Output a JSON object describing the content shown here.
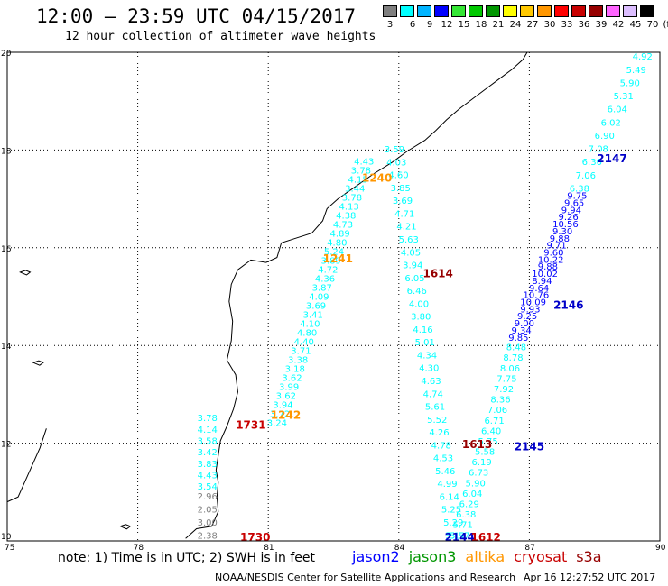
{
  "header": {
    "title": "12:00 — 23:59 UTC 04/15/2017",
    "subtitle": "12 hour collection of altimeter wave heights"
  },
  "scale": {
    "unit": "(ft)",
    "stops": [
      {
        "label": "3",
        "color": "#7f7f7f"
      },
      {
        "label": "6",
        "color": "#00ffff"
      },
      {
        "label": "9",
        "color": "#00b4ff"
      },
      {
        "label": "12",
        "color": "#0000ff"
      },
      {
        "label": "15",
        "color": "#34e634"
      },
      {
        "label": "18",
        "color": "#00c800"
      },
      {
        "label": "21",
        "color": "#009600"
      },
      {
        "label": "24",
        "color": "#ffff00"
      },
      {
        "label": "27",
        "color": "#ffc800"
      },
      {
        "label": "30",
        "color": "#ff9600"
      },
      {
        "label": "33",
        "color": "#ff0000"
      },
      {
        "label": "36",
        "color": "#c80000"
      },
      {
        "label": "39",
        "color": "#960000"
      },
      {
        "label": "42",
        "color": "#ff64ff"
      },
      {
        "label": "45",
        "color": "#dcbeff"
      },
      {
        "label": "70",
        "color": "#000000"
      }
    ]
  },
  "axes": {
    "lon_ticks": [
      "75",
      "78",
      "81",
      "84",
      "87",
      "90"
    ],
    "lat_ticks": [
      "10",
      "12",
      "14",
      "16",
      "18",
      "20"
    ]
  },
  "tracks": [
    {
      "name": "track-jason2-east",
      "color": "#00ffff",
      "start": [
        89.6,
        19.85
      ],
      "end": [
        88.15,
        17.15
      ],
      "values": [
        "4.92",
        "5.49",
        "5.90",
        "5.31",
        "6.04",
        "6.02",
        "6.90",
        "7.08",
        "6.30",
        "7.06",
        "6.38"
      ]
    },
    {
      "name": "track-jason2-east-blue",
      "color": "#0000ff",
      "start": [
        88.1,
        17.0
      ],
      "end": [
        86.75,
        14.1
      ],
      "values": [
        "9.75",
        "9.65",
        "9.94",
        "9.26",
        "10.56",
        "9.30",
        "9.88",
        "9.71",
        "9.60",
        "10.22",
        "9.88",
        "10.02",
        "8.94",
        "9.64",
        "10.76",
        "10.09",
        "9.93",
        "9.25",
        "9.00",
        "9.34",
        "9.85"
      ]
    },
    {
      "name": "track-jason2-east-lower",
      "color": "#00ffff",
      "start": [
        86.7,
        13.9
      ],
      "end": [
        85.4,
        10.05
      ],
      "values": [
        "8.48",
        "8.78",
        "8.06",
        "7.75",
        "7.92",
        "8.36",
        "7.06",
        "6.71",
        "6.40",
        "5.75",
        "5.58",
        "6.19",
        "6.73",
        "5.90",
        "6.04",
        "6.29",
        "6.38",
        "5.71",
        "5.57"
      ]
    },
    {
      "name": "track-altika-north",
      "color": "#00ffff",
      "start": [
        83.9,
        17.95
      ],
      "end": [
        85.3,
        10.05
      ],
      "values": [
        "3.59",
        "4.03",
        "4.60",
        "3.85",
        "3.69",
        "4.71",
        "4.21",
        "5.63",
        "4.05",
        "3.94",
        "6.05",
        "6.46",
        "4.00",
        "3.80",
        "4.16",
        "5.01",
        "4.34",
        "4.30",
        "4.63",
        "4.74",
        "5.61",
        "5.52",
        "4.26",
        "4.78",
        "4.53",
        "5.46",
        "4.99",
        "6.14",
        "5.25",
        "5.29",
        "5.13"
      ]
    },
    {
      "name": "track-altika-west",
      "color": "#00ffff",
      "start": [
        83.2,
        17.7
      ],
      "end": [
        81.2,
        12.35
      ],
      "values": [
        "4.43",
        "3.78",
        "4.15",
        "3.44",
        "3.78",
        "4.13",
        "4.38",
        "4.73",
        "4.89",
        "4.80",
        "5.24",
        "3.89",
        "4.72",
        "4.36",
        "3.87",
        "4.09",
        "3.69",
        "3.41",
        "4.10",
        "4.80",
        "4.40",
        "3.71",
        "3.38",
        "3.18",
        "3.62",
        "3.99",
        "3.62",
        "3.94",
        "3.72",
        "3.24"
      ]
    },
    {
      "name": "track-cryosat-west",
      "color": "#00ffff",
      "start": [
        79.6,
        12.45
      ],
      "end": [
        79.6,
        11.05
      ],
      "values": [
        "3.78",
        "4.14",
        "3.58",
        "3.42",
        "3.83",
        "4.43",
        "3.54"
      ]
    },
    {
      "name": "track-cryosat-west-grey",
      "color": "#7f7f7f",
      "start": [
        79.6,
        10.85
      ],
      "end": [
        79.6,
        10.05
      ],
      "values": [
        "2.96",
        "2.05",
        "3.00",
        "2.38"
      ]
    }
  ],
  "pass_labels": [
    {
      "text": "2147",
      "color": "#0000c8",
      "lon": 88.9,
      "lat": 17.75
    },
    {
      "text": "2146",
      "color": "#0000c8",
      "lon": 87.9,
      "lat": 14.75
    },
    {
      "text": "2145",
      "color": "#0000c8",
      "lon": 87.0,
      "lat": 11.85
    },
    {
      "text": "2144",
      "color": "#0000c8",
      "lon": 85.4,
      "lat": 10.0
    },
    {
      "text": "1240",
      "color": "#ff9600",
      "lon": 83.5,
      "lat": 17.35
    },
    {
      "text": "1241",
      "color": "#ff9600",
      "lon": 82.6,
      "lat": 15.7
    },
    {
      "text": "1242",
      "color": "#ff9600",
      "lon": 81.4,
      "lat": 12.5
    },
    {
      "text": "1614",
      "color": "#960000",
      "lon": 84.9,
      "lat": 15.4
    },
    {
      "text": "1613",
      "color": "#960000",
      "lon": 85.8,
      "lat": 11.9
    },
    {
      "text": "1612",
      "color": "#c80000",
      "lon": 86.0,
      "lat": 10.0
    },
    {
      "text": "1731",
      "color": "#c80000",
      "lon": 80.6,
      "lat": 12.3
    },
    {
      "text": "1730",
      "color": "#c80000",
      "lon": 80.7,
      "lat": 10.0
    }
  ],
  "footer": {
    "note": "note: 1) Time is in UTC; 2) SWH is in feet",
    "satellites": [
      {
        "label": "jason2",
        "color": "#0000ff"
      },
      {
        "label": "jason3",
        "color": "#009600"
      },
      {
        "label": "altika",
        "color": "#ff9600"
      },
      {
        "label": "cryosat",
        "color": "#c80000"
      },
      {
        "label": "s3a",
        "color": "#960000"
      }
    ],
    "credit": "NOAA/NESDIS Center for Satellite Applications and Research",
    "timestamp": "Apr 16 12:27:52 UTC 2017"
  }
}
